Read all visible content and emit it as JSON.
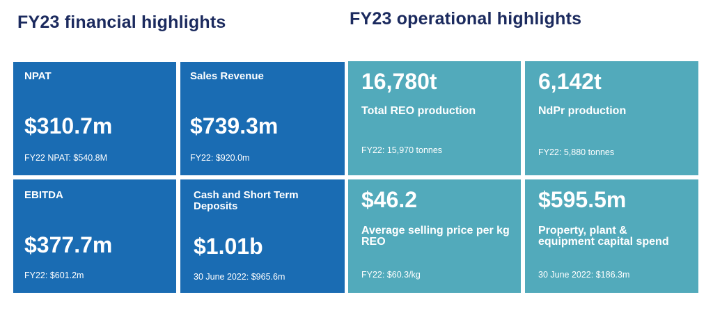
{
  "financial": {
    "heading": "FY23 financial highlights",
    "tiles": [
      {
        "label": "NPAT",
        "value": "$310.7m",
        "sub": "FY22 NPAT: $540.8M"
      },
      {
        "label": "Sales Revenue",
        "value": "$739.3m",
        "sub": "FY22: $920.0m"
      },
      {
        "label": "EBITDA",
        "value": "$377.7m",
        "sub": "FY22: $601.2m"
      },
      {
        "label": "Cash and Short Term Deposits",
        "value": "$1.01b",
        "sub": "30 June 2022: $965.6m"
      }
    ]
  },
  "operational": {
    "heading": "FY23 operational highlights",
    "tiles": [
      {
        "value": "16,780t",
        "label": "Total REO production",
        "sub": "FY22: 15,970 tonnes"
      },
      {
        "value": "6,142t",
        "label": "NdPr production",
        "sub": "FY22: 5,880 tonnes"
      },
      {
        "value": "$46.2",
        "label": "Average selling price per kg REO",
        "sub": "FY22: $60.3/kg"
      },
      {
        "value": "$595.5m",
        "label": "Property, plant & equipment capital spend",
        "sub": "30 June 2022: $186.3m"
      }
    ]
  },
  "colors": {
    "financial_tile": "#1a6cb3",
    "operational_tile": "#52aabb",
    "heading_text": "#1b2a5e"
  }
}
